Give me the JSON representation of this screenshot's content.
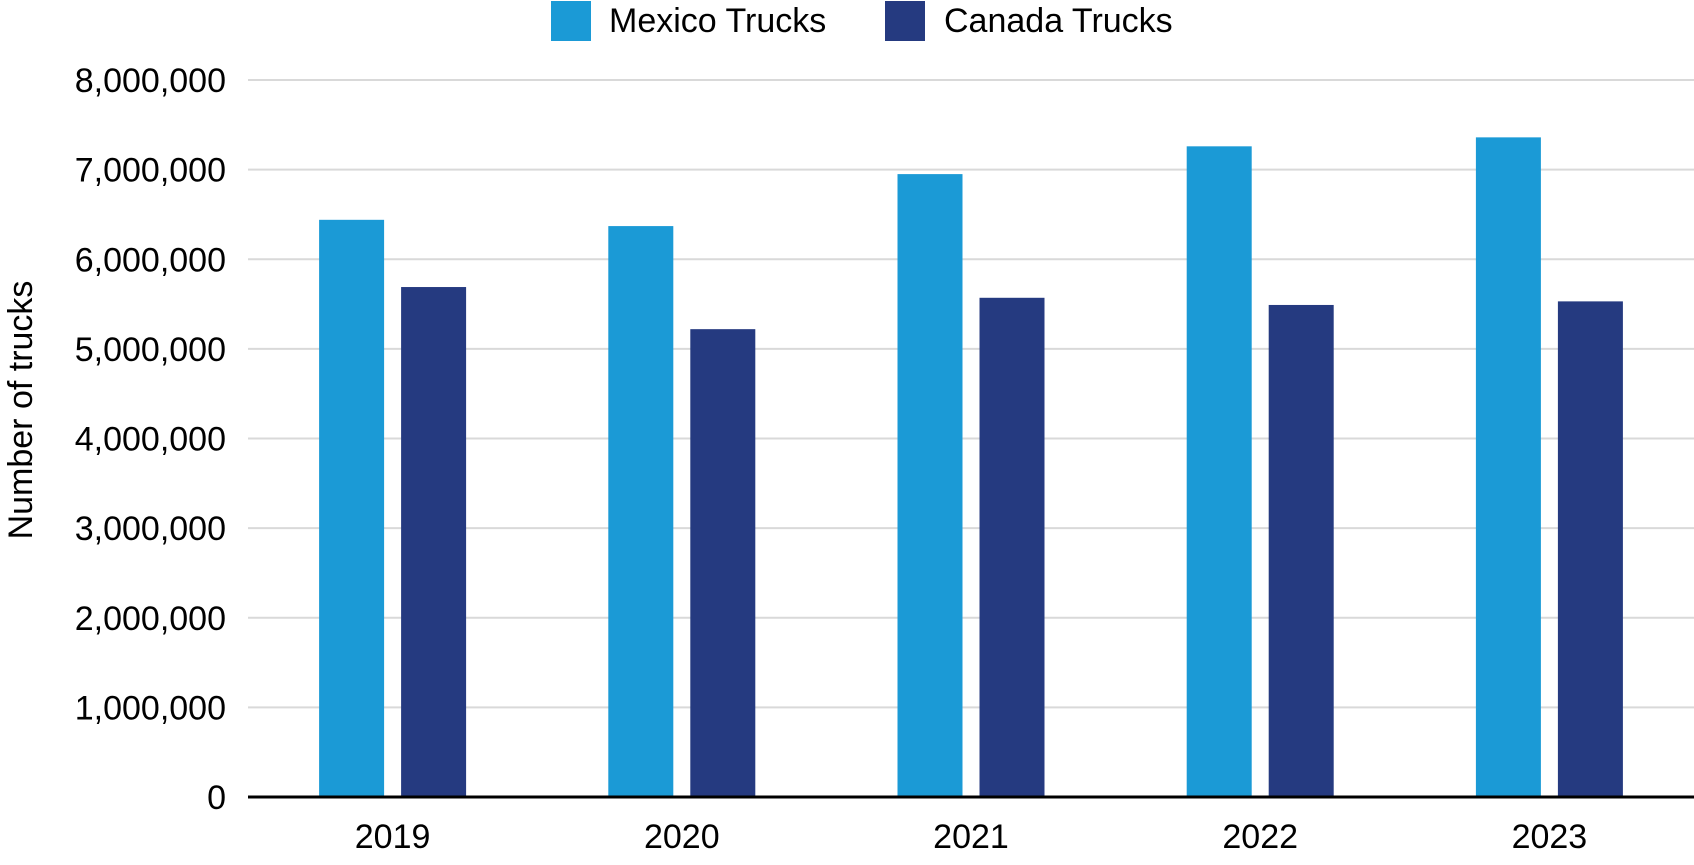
{
  "chart_data": {
    "type": "bar",
    "title": "",
    "xlabel": "",
    "ylabel": "Number of trucks",
    "categories": [
      "2019",
      "2020",
      "2021",
      "2022",
      "2023"
    ],
    "series": [
      {
        "name": "Mexico Trucks",
        "color": "#1b9ad6",
        "values": [
          6440000,
          6370000,
          6950000,
          7260000,
          7360000
        ]
      },
      {
        "name": "Canada Trucks",
        "color": "#253a80",
        "values": [
          5690000,
          5220000,
          5570000,
          5490000,
          5530000
        ]
      }
    ],
    "ylim": [
      0,
      8000000
    ],
    "yticks": [
      0,
      1000000,
      2000000,
      3000000,
      4000000,
      5000000,
      6000000,
      7000000,
      8000000
    ],
    "ytick_labels": [
      "0",
      "1,000,000",
      "2,000,000",
      "3,000,000",
      "4,000,000",
      "5,000,000",
      "6,000,000",
      "7,000,000",
      "8,000,000"
    ],
    "grid": true,
    "gridline_color": "#d9d9d9",
    "axis_color": "#000000",
    "legend_position": "top-center"
  }
}
